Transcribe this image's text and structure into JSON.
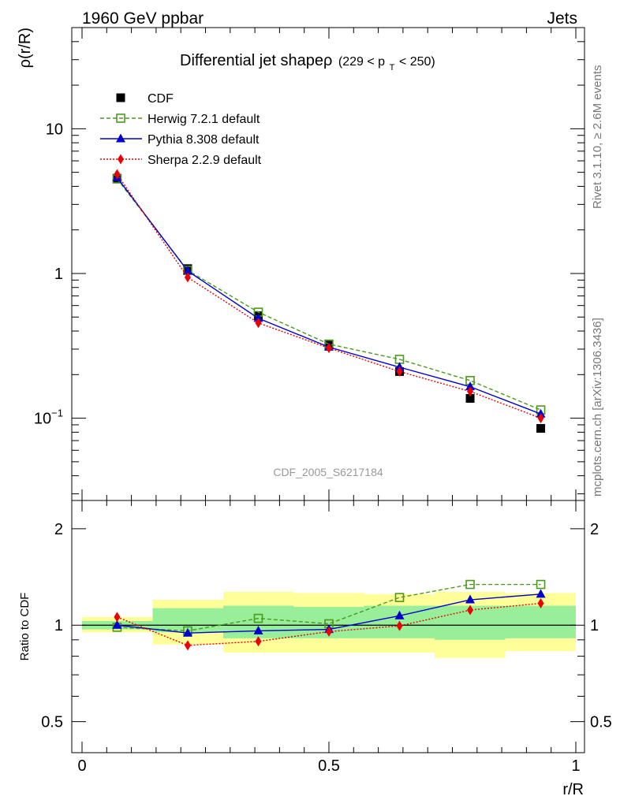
{
  "header": {
    "left": "1960 GeV ppbar",
    "right": "Jets"
  },
  "side_labels": {
    "rivet": "Rivet 3.1.10, ≥ 2.6M events",
    "source": "mcplots.cern.ch [arXiv:1306.3436]"
  },
  "watermark": "CDF_2005_S6217184",
  "chart_data": [
    {
      "type": "line",
      "panel": "main",
      "title": "Differential jet shapeρ",
      "title_suffix": "(229 < p",
      "title_sub": "T",
      "title_close": " < 250)",
      "ylabel": "ρ(r/R)",
      "yscale": "log",
      "xlim": [
        0,
        1
      ],
      "ylim": [
        0.027,
        50
      ],
      "grid": false,
      "legend": "top-left",
      "x": [
        0.071,
        0.214,
        0.357,
        0.5,
        0.643,
        0.786,
        0.929
      ],
      "series": [
        {
          "name": "CDF",
          "color": "#000000",
          "marker": "square-filled",
          "values": [
            4.55,
            1.08,
            0.51,
            0.32,
            0.21,
            0.137,
            0.085
          ]
        },
        {
          "name": "Herwig 7.2.1 default",
          "color": "#4a9a1c",
          "marker": "square-open",
          "dash": "5,3",
          "values": [
            4.5,
            1.05,
            0.54,
            0.325,
            0.255,
            0.182,
            0.114
          ]
        },
        {
          "name": "Pythia 8.308 default",
          "color": "#0000cc",
          "marker": "triangle",
          "dash": "",
          "values": [
            4.6,
            1.04,
            0.49,
            0.31,
            0.225,
            0.165,
            0.107
          ]
        },
        {
          "name": "Sherpa 2.2.9 default",
          "color": "#ee0000",
          "marker": "diamond",
          "dash": "2,2",
          "values": [
            4.85,
            0.94,
            0.455,
            0.305,
            0.21,
            0.153,
            0.1
          ]
        }
      ],
      "y_ticks": [
        {
          "value": 0.1,
          "label": "10",
          "sup": "−1"
        },
        {
          "value": 1,
          "label": "1",
          "sup": ""
        },
        {
          "value": 10,
          "label": "10",
          "sup": ""
        }
      ]
    },
    {
      "type": "line",
      "panel": "ratio",
      "ylabel": "Ratio to CDF",
      "xlabel": "r/R",
      "yscale": "log",
      "xlim": [
        0,
        1
      ],
      "ylim": [
        0.4,
        2.45
      ],
      "x": [
        0.071,
        0.214,
        0.357,
        0.5,
        0.643,
        0.786,
        0.929
      ],
      "reference": 1,
      "bands": {
        "edges": [
          0,
          0.143,
          0.286,
          0.429,
          0.571,
          0.714,
          0.857,
          1.0
        ],
        "yellow": [
          [
            0.95,
            1.06
          ],
          [
            0.87,
            1.2
          ],
          [
            0.82,
            1.27
          ],
          [
            0.82,
            1.26
          ],
          [
            0.82,
            1.25
          ],
          [
            0.79,
            1.27
          ],
          [
            0.83,
            1.26
          ]
        ],
        "green": [
          [
            0.97,
            1.03
          ],
          [
            0.95,
            1.13
          ],
          [
            0.91,
            1.15
          ],
          [
            0.91,
            1.14
          ],
          [
            0.91,
            1.15
          ],
          [
            0.9,
            1.15
          ],
          [
            0.91,
            1.15
          ]
        ]
      },
      "series": [
        {
          "name": "Herwig 7.2.1 default",
          "color": "#4a9a1c",
          "marker": "square-open",
          "dash": "5,3",
          "values": [
            0.985,
            0.96,
            1.05,
            1.01,
            1.22,
            1.34,
            1.34
          ]
        },
        {
          "name": "Pythia 8.308 default",
          "color": "#0000cc",
          "marker": "triangle",
          "dash": "",
          "values": [
            1.0,
            0.945,
            0.96,
            0.97,
            1.07,
            1.2,
            1.25
          ]
        },
        {
          "name": "Sherpa 2.2.9 default",
          "color": "#ee0000",
          "marker": "diamond",
          "dash": "2,2",
          "values": [
            1.06,
            0.865,
            0.89,
            0.955,
            0.995,
            1.115,
            1.17
          ]
        }
      ],
      "y_ticks": [
        {
          "value": 0.5,
          "label": "0.5"
        },
        {
          "value": 1,
          "label": "1"
        },
        {
          "value": 2,
          "label": "2"
        }
      ],
      "x_ticks": [
        {
          "value": 0,
          "label": "0"
        },
        {
          "value": 0.5,
          "label": "0.5"
        },
        {
          "value": 1,
          "label": "1"
        }
      ]
    }
  ]
}
